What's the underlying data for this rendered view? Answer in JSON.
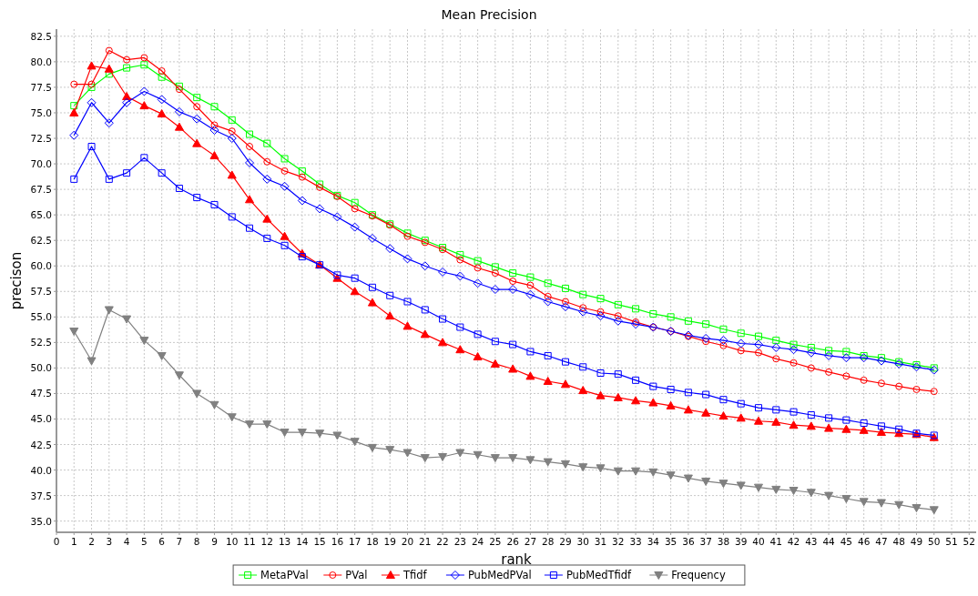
{
  "chart_data": {
    "type": "line",
    "title": "Mean Precision",
    "xlabel": "rank",
    "ylabel": "precison",
    "x": [
      1,
      2,
      3,
      4,
      5,
      6,
      7,
      8,
      9,
      10,
      11,
      12,
      13,
      14,
      15,
      16,
      17,
      18,
      19,
      20,
      21,
      22,
      23,
      24,
      25,
      26,
      27,
      28,
      29,
      30,
      31,
      32,
      33,
      34,
      35,
      36,
      37,
      38,
      39,
      40,
      41,
      42,
      43,
      44,
      45,
      46,
      47,
      48,
      49,
      50
    ],
    "xlim": [
      0,
      52.4
    ],
    "xticks": [
      0,
      1,
      2,
      3,
      4,
      5,
      6,
      7,
      8,
      9,
      10,
      11,
      12,
      13,
      14,
      15,
      16,
      17,
      18,
      19,
      20,
      21,
      22,
      23,
      24,
      25,
      26,
      27,
      28,
      29,
      30,
      31,
      32,
      33,
      34,
      35,
      36,
      37,
      38,
      39,
      40,
      41,
      42,
      43,
      44,
      45,
      46,
      47,
      48,
      49,
      50,
      51,
      52
    ],
    "ylim": [
      33.9,
      83.2
    ],
    "yticks": [
      {
        "value": 35,
        "label": "35.0"
      },
      {
        "value": 37.5,
        "label": "37.5"
      },
      {
        "value": 40,
        "label": "40.0"
      },
      {
        "value": 42.5,
        "label": "42.5"
      },
      {
        "value": 45,
        "label": "45.0"
      },
      {
        "value": 47.5,
        "label": "47.5"
      },
      {
        "value": 50,
        "label": "50.0"
      },
      {
        "value": 52.5,
        "label": "52.5"
      },
      {
        "value": 55,
        "label": "55.0"
      },
      {
        "value": 57.5,
        "label": "57.5"
      },
      {
        "value": 60,
        "label": "60.0"
      },
      {
        "value": 62.5,
        "label": "62.5"
      },
      {
        "value": 65,
        "label": "65.0"
      },
      {
        "value": 67.5,
        "label": "67.5"
      },
      {
        "value": 70,
        "label": "70.0"
      },
      {
        "value": 72.5,
        "label": "72.5"
      },
      {
        "value": 75,
        "label": "75.0"
      },
      {
        "value": 77.5,
        "label": "77.5"
      },
      {
        "value": 80,
        "label": "80.0"
      },
      {
        "value": 82.5,
        "label": "82.5"
      }
    ],
    "grid": true,
    "legend": "bottom",
    "line_style": "solid",
    "series": [
      {
        "name": "MetaPVal",
        "color": "#00ff00",
        "marker": "square",
        "values": [
          75.7,
          77.5,
          78.8,
          79.4,
          79.7,
          78.5,
          77.6,
          76.5,
          75.6,
          74.3,
          72.9,
          72.0,
          70.5,
          69.3,
          68.0,
          66.9,
          66.2,
          65.0,
          64.1,
          63.2,
          62.5,
          61.8,
          61.1,
          60.5,
          59.9,
          59.3,
          58.9,
          58.3,
          57.8,
          57.2,
          56.8,
          56.2,
          55.8,
          55.3,
          55.0,
          54.6,
          54.3,
          53.8,
          53.4,
          53.1,
          52.7,
          52.3,
          52.0,
          51.7,
          51.6,
          51.2,
          51.0,
          50.6,
          50.3,
          50.0
        ]
      },
      {
        "name": "PVal",
        "color": "#ff0000",
        "marker": "circle",
        "values": [
          77.8,
          77.8,
          81.1,
          80.2,
          80.4,
          79.1,
          77.3,
          75.6,
          73.8,
          73.2,
          71.7,
          70.2,
          69.3,
          68.7,
          67.7,
          66.8,
          65.6,
          64.9,
          64.0,
          62.9,
          62.3,
          61.6,
          60.6,
          59.8,
          59.3,
          58.5,
          58.1,
          57.0,
          56.5,
          55.9,
          55.5,
          55.1,
          54.5,
          54.0,
          53.6,
          53.1,
          52.6,
          52.2,
          51.7,
          51.5,
          50.9,
          50.5,
          50.0,
          49.6,
          49.2,
          48.8,
          48.5,
          48.2,
          47.9,
          47.7
        ]
      },
      {
        "name": "Tfidf",
        "color": "#ff0000",
        "marker": "triangle",
        "values": [
          75.0,
          79.6,
          79.3,
          76.6,
          75.7,
          74.9,
          73.6,
          72.0,
          70.8,
          68.9,
          66.5,
          64.6,
          62.9,
          61.2,
          60.1,
          58.8,
          57.5,
          56.4,
          55.1,
          54.1,
          53.3,
          52.5,
          51.8,
          51.1,
          50.4,
          49.9,
          49.2,
          48.7,
          48.4,
          47.8,
          47.3,
          47.1,
          46.8,
          46.6,
          46.3,
          45.9,
          45.6,
          45.3,
          45.1,
          44.8,
          44.7,
          44.4,
          44.3,
          44.1,
          44.0,
          43.9,
          43.7,
          43.6,
          43.5,
          43.2
        ]
      },
      {
        "name": "PubMedPVal",
        "color": "#0000ff",
        "marker": "diamond",
        "values": [
          72.8,
          76.0,
          74.0,
          76.0,
          77.1,
          76.3,
          75.1,
          74.4,
          73.3,
          72.5,
          70.1,
          68.5,
          67.8,
          66.4,
          65.6,
          64.8,
          63.8,
          62.7,
          61.7,
          60.7,
          60.0,
          59.4,
          59.0,
          58.3,
          57.7,
          57.7,
          57.2,
          56.5,
          56.0,
          55.5,
          55.1,
          54.6,
          54.3,
          54.0,
          53.6,
          53.2,
          52.9,
          52.7,
          52.4,
          52.3,
          52.0,
          51.8,
          51.5,
          51.2,
          51.0,
          51.0,
          50.7,
          50.4,
          50.1,
          49.8
        ]
      },
      {
        "name": "PubMedTfidf",
        "color": "#0000ff",
        "marker": "square",
        "values": [
          68.5,
          71.7,
          68.5,
          69.1,
          70.6,
          69.1,
          67.6,
          66.7,
          66.0,
          64.8,
          63.7,
          62.7,
          62.0,
          60.9,
          60.1,
          59.1,
          58.8,
          57.9,
          57.1,
          56.5,
          55.7,
          54.8,
          54.0,
          53.3,
          52.6,
          52.3,
          51.6,
          51.2,
          50.6,
          50.1,
          49.5,
          49.4,
          48.8,
          48.2,
          47.9,
          47.6,
          47.4,
          46.9,
          46.5,
          46.1,
          45.9,
          45.7,
          45.4,
          45.1,
          44.9,
          44.6,
          44.3,
          44.0,
          43.6,
          43.4
        ]
      },
      {
        "name": "Frequency",
        "color": "#808080",
        "marker": "triangle",
        "values": [
          53.6,
          50.7,
          55.7,
          54.8,
          52.7,
          51.2,
          49.3,
          47.5,
          46.4,
          45.2,
          44.5,
          44.5,
          43.7,
          43.7,
          43.6,
          43.4,
          42.8,
          42.2,
          42.0,
          41.7,
          41.2,
          41.3,
          41.7,
          41.5,
          41.2,
          41.2,
          41.0,
          40.8,
          40.6,
          40.3,
          40.2,
          39.9,
          39.9,
          39.8,
          39.5,
          39.2,
          38.9,
          38.7,
          38.5,
          38.3,
          38.1,
          38.0,
          37.8,
          37.5,
          37.2,
          36.9,
          36.8,
          36.6,
          36.3,
          36.1
        ]
      }
    ]
  }
}
